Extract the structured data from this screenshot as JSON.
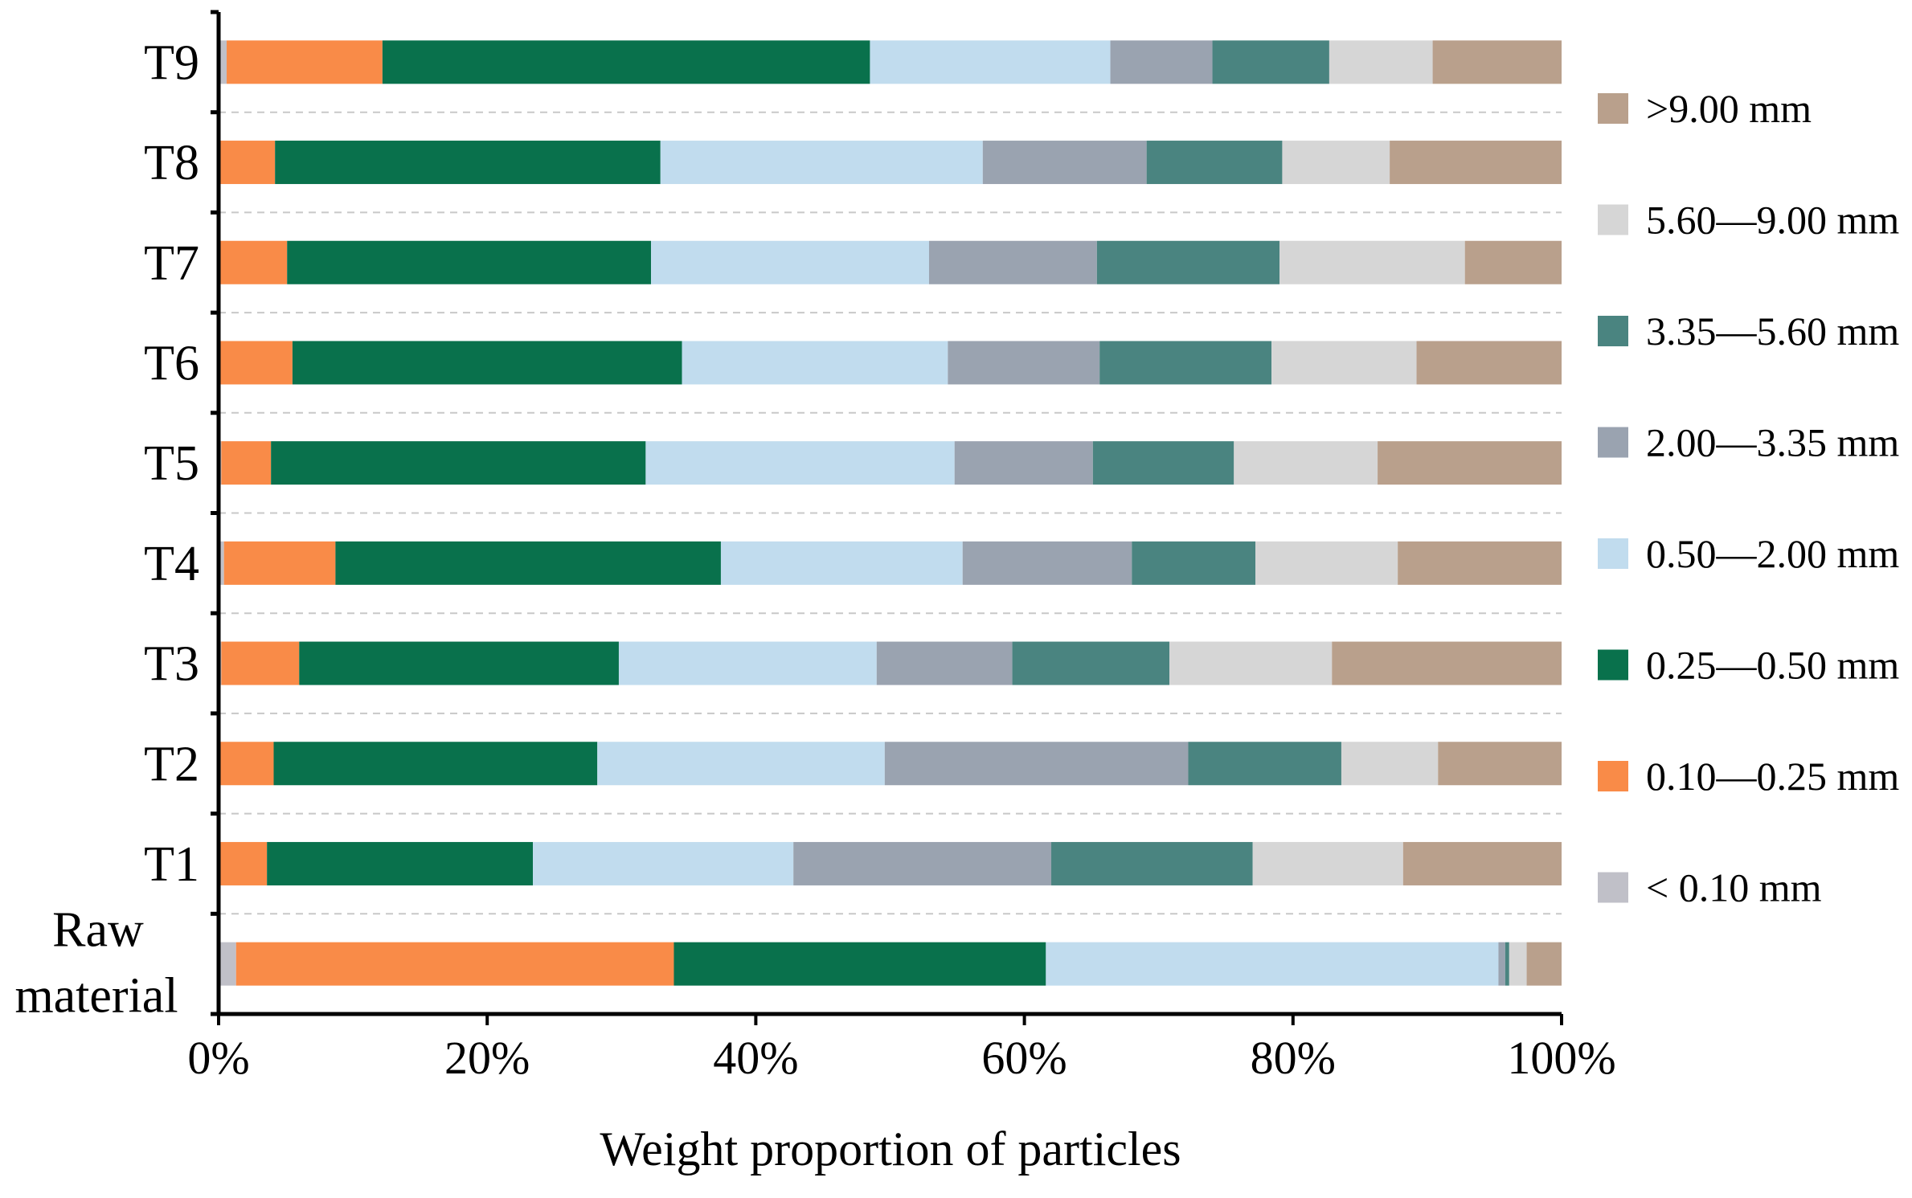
{
  "chart_data": {
    "type": "bar",
    "orientation": "horizontal",
    "stacked": true,
    "title": "",
    "xlabel": "Weight proportion of particles",
    "ylabel": "",
    "xlim": [
      0,
      100
    ],
    "xticks": [
      "0%",
      "20%",
      "40%",
      "60%",
      "80%",
      "100%"
    ],
    "grid": "horizontal dashed separators between categories",
    "legend_position": "right",
    "categories": [
      "T9",
      "T8",
      "T7",
      "T6",
      "T5",
      "T4",
      "T3",
      "T2",
      "T1",
      "Raw material"
    ],
    "category_lines": [
      [
        "T9"
      ],
      [
        "T8"
      ],
      [
        "T7"
      ],
      [
        "T6"
      ],
      [
        "T5"
      ],
      [
        "T4"
      ],
      [
        "T3"
      ],
      [
        "T2"
      ],
      [
        "T1"
      ],
      [
        "Raw",
        "material"
      ]
    ],
    "series": [
      {
        "name": "< 0.10 mm",
        "color": "#c0c0c8",
        "values": [
          0.6,
          0,
          0,
          0,
          0.2,
          0.4,
          0.2,
          0,
          0,
          1.3
        ]
      },
      {
        "name": "0.10—0.25 mm",
        "color": "#f98b48",
        "values": [
          11.6,
          4.2,
          5.1,
          5.5,
          3.7,
          8.3,
          5.8,
          4.1,
          3.6,
          32.6
        ]
      },
      {
        "name": "0.25—0.50 mm",
        "color": "#09714c",
        "values": [
          36.3,
          28.7,
          27.1,
          29.0,
          27.9,
          28.7,
          23.8,
          24.1,
          19.8,
          27.7
        ]
      },
      {
        "name": "0.50—2.00 mm",
        "color": "#c1dcee",
        "values": [
          17.9,
          24.0,
          20.7,
          19.8,
          23.0,
          18.0,
          19.2,
          21.4,
          19.4,
          33.7
        ]
      },
      {
        "name": "2.00—3.35 mm",
        "color": "#9aa3b0",
        "values": [
          7.6,
          12.2,
          12.5,
          11.3,
          10.3,
          12.6,
          10.1,
          22.6,
          19.2,
          0.5
        ]
      },
      {
        "name": "3.35—5.60 mm",
        "color": "#4a8480",
        "values": [
          8.7,
          10.1,
          13.6,
          12.8,
          10.5,
          9.2,
          11.7,
          11.4,
          15.0,
          0.3
        ]
      },
      {
        "name": "5.60—9.00 mm",
        "color": "#d6d6d6",
        "values": [
          7.7,
          8.0,
          13.8,
          10.8,
          10.7,
          10.6,
          12.1,
          7.2,
          11.2,
          1.3
        ]
      },
      {
        "name": ">9.00 mm",
        "color": "#b9a08c",
        "values": [
          9.6,
          12.8,
          7.2,
          10.8,
          13.7,
          12.2,
          17.1,
          9.2,
          11.8,
          2.6
        ]
      }
    ]
  }
}
